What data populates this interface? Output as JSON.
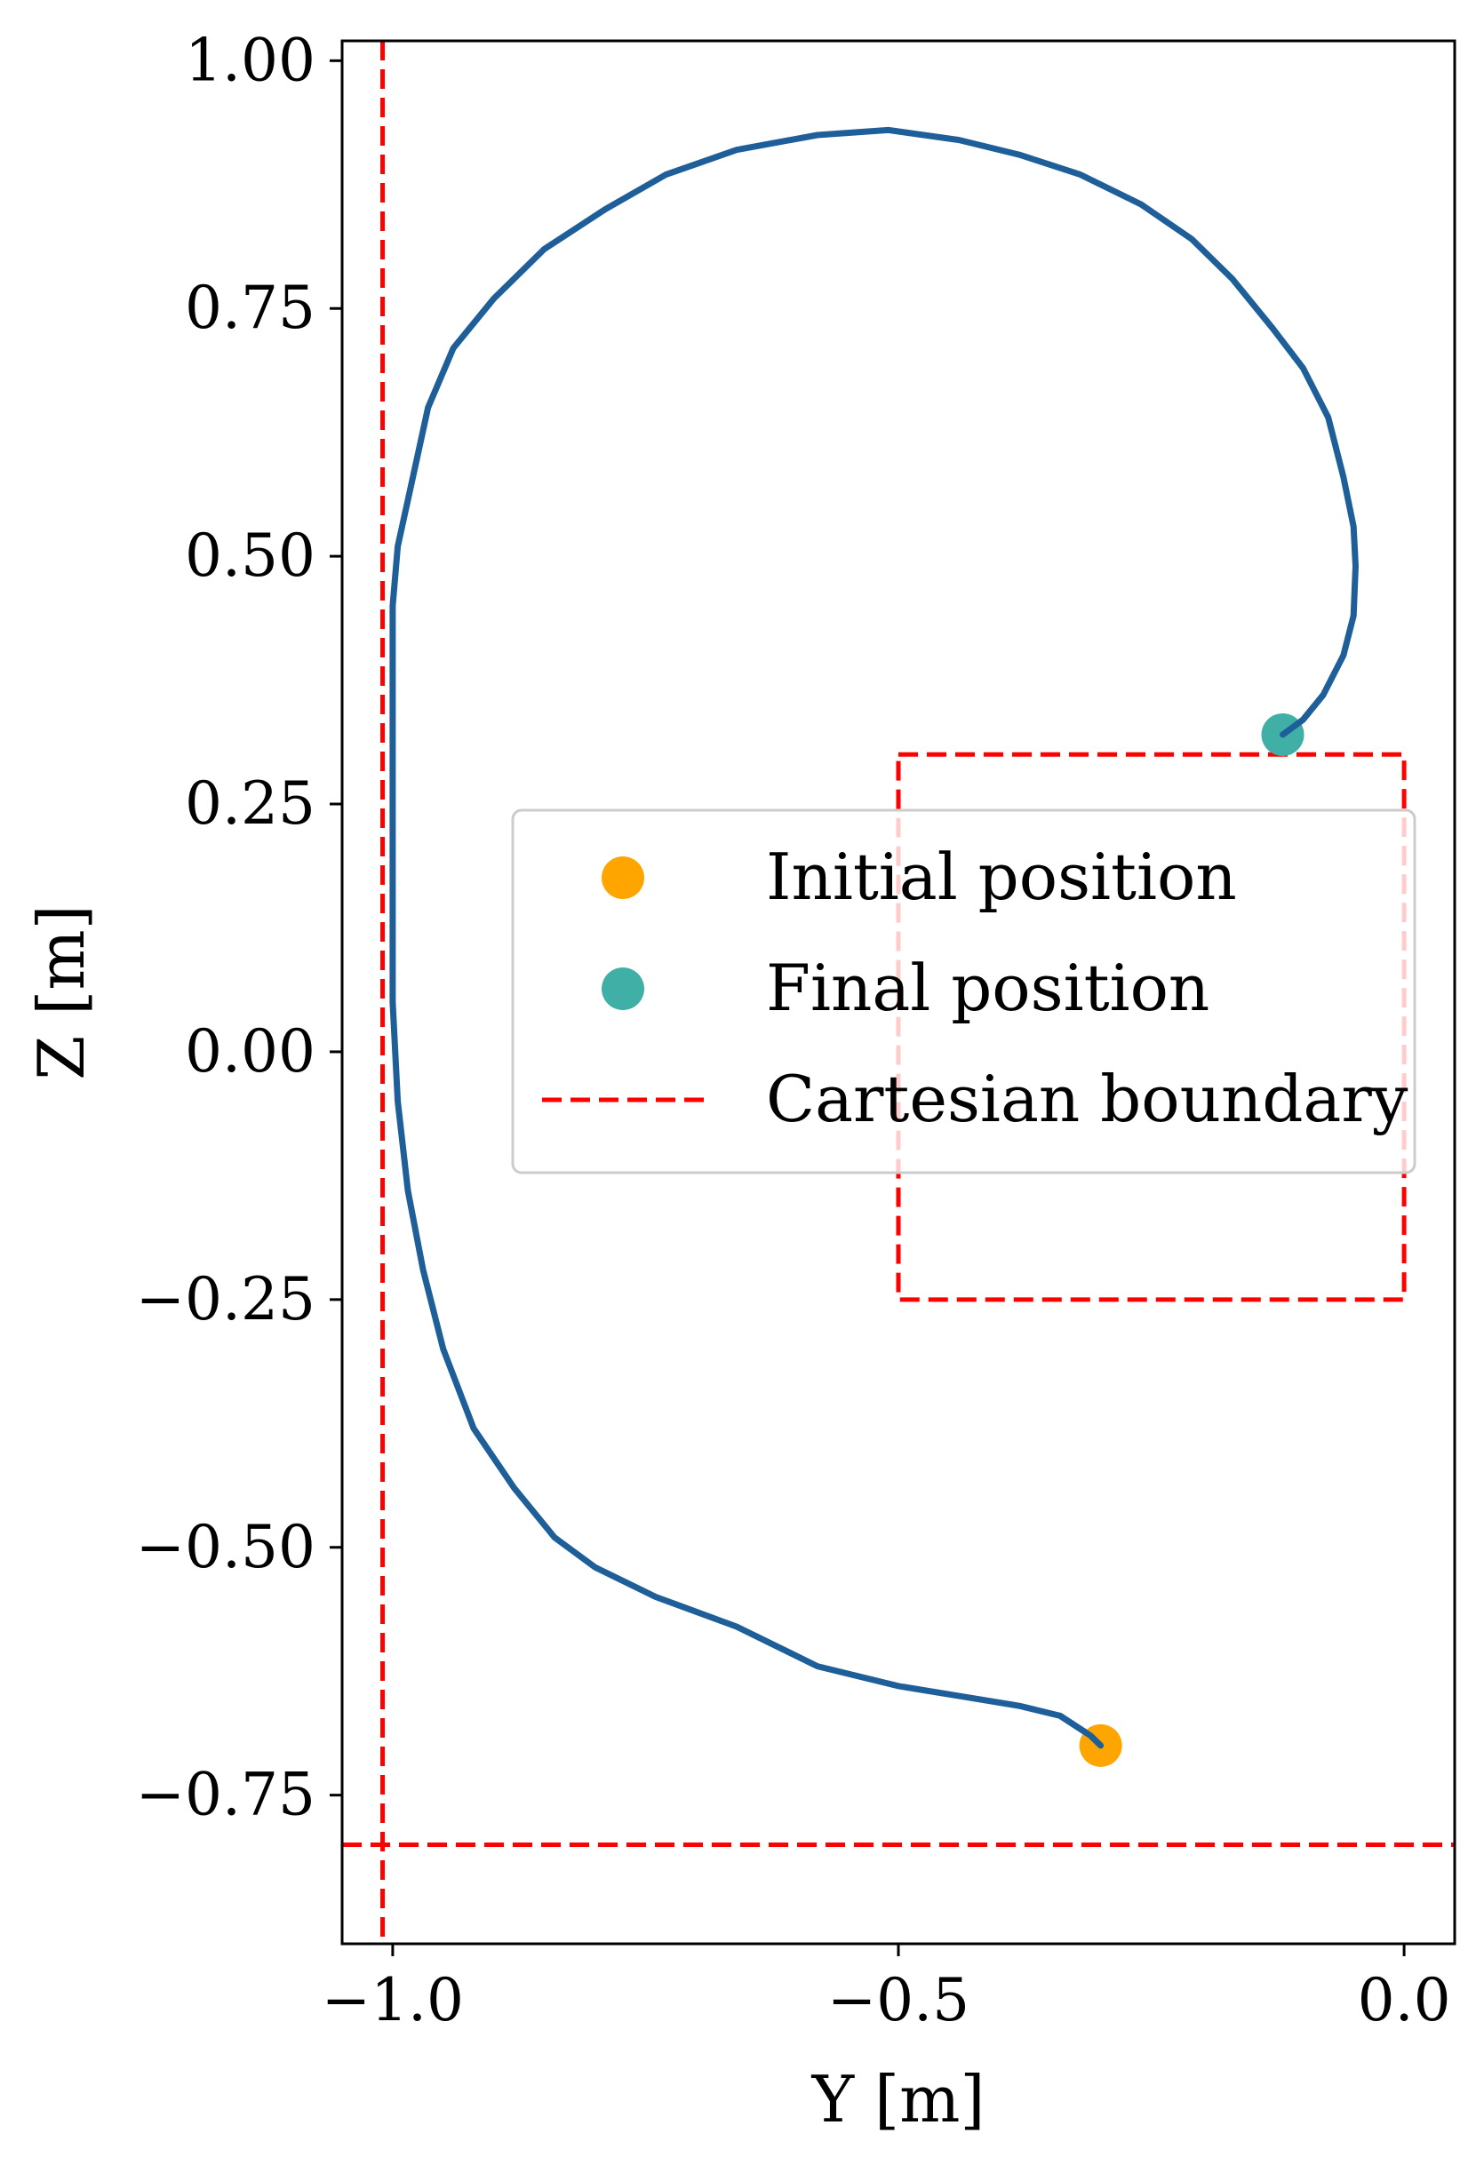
{
  "chart_data": {
    "type": "line",
    "title": "",
    "xlabel": "Y [m]",
    "ylabel": "Z [m]",
    "xlim": [
      -1.05,
      0.05
    ],
    "ylim": [
      -0.9,
      1.02
    ],
    "grid": false,
    "x_ticks": [
      -1.0,
      -0.5,
      0.0
    ],
    "x_tick_labels": [
      "−1.0",
      "−0.5",
      "0.0"
    ],
    "y_ticks": [
      1.0,
      0.75,
      0.5,
      0.25,
      0.0,
      -0.25,
      -0.5,
      -0.75
    ],
    "y_tick_labels": [
      "1.00",
      "0.75",
      "0.50",
      "0.25",
      "0.00",
      "−0.25",
      "−0.50",
      "−0.75"
    ],
    "trajectory": {
      "name": "trajectory",
      "color": "#1f5f99",
      "x": [
        -0.3,
        -0.31,
        -0.34,
        -0.38,
        -0.44,
        -0.5,
        -0.58,
        -0.66,
        -0.74,
        -0.8,
        -0.84,
        -0.88,
        -0.92,
        -0.95,
        -0.97,
        -0.985,
        -0.995,
        -1.0,
        -1.0,
        -1.0,
        -1.0,
        -1.0,
        -1.0,
        -0.995,
        -0.98,
        -0.965,
        -0.94,
        -0.9,
        -0.85,
        -0.79,
        -0.73,
        -0.66,
        -0.58,
        -0.51,
        -0.44,
        -0.38,
        -0.32,
        -0.26,
        -0.21,
        -0.17,
        -0.13,
        -0.1,
        -0.075,
        -0.06,
        -0.05,
        -0.048,
        -0.05,
        -0.06,
        -0.08,
        -0.1,
        -0.12
      ],
      "y": [
        -0.7,
        -0.69,
        -0.67,
        -0.66,
        -0.65,
        -0.64,
        -0.62,
        -0.58,
        -0.55,
        -0.52,
        -0.49,
        -0.44,
        -0.38,
        -0.3,
        -0.22,
        -0.14,
        -0.05,
        0.05,
        0.15,
        0.25,
        0.35,
        0.42,
        0.45,
        0.51,
        0.58,
        0.65,
        0.71,
        0.76,
        0.81,
        0.85,
        0.885,
        0.91,
        0.925,
        0.93,
        0.92,
        0.905,
        0.885,
        0.855,
        0.82,
        0.78,
        0.73,
        0.69,
        0.64,
        0.58,
        0.53,
        0.49,
        0.44,
        0.4,
        0.36,
        0.335,
        0.32
      ]
    },
    "markers": [
      {
        "name": "Initial position",
        "x": -0.3,
        "y": -0.7,
        "color": "#ffa500"
      },
      {
        "name": "Final position",
        "x": -0.12,
        "y": 0.32,
        "color": "#40b0a6"
      }
    ],
    "boundary": {
      "name": "Cartesian boundary",
      "color": "#ff0000",
      "vertical_line_x": -1.01,
      "horizontal_line_y": -0.8,
      "box": {
        "x_min": -0.5,
        "x_max": 0.0,
        "y_min": -0.25,
        "y_max": 0.3
      }
    },
    "legend": {
      "location": "center-right",
      "entries": [
        "Initial position",
        "Final position",
        "Cartesian boundary"
      ]
    }
  }
}
